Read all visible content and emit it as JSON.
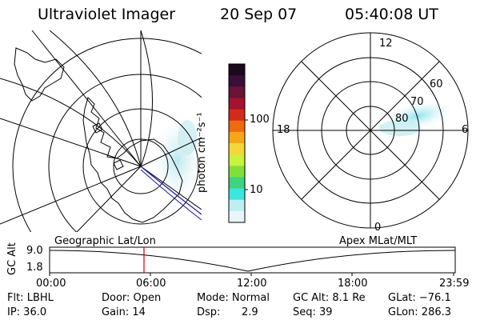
{
  "header": {
    "instrument": "Ultraviolet Imager",
    "date": "20 Sep 07",
    "time": "05:40:08 UT"
  },
  "colorbar": {
    "unit": "photon cm⁻²s⁻¹",
    "ticks": [
      "100",
      "10"
    ],
    "colors": [
      "#1a0a1a",
      "#3a0f3a",
      "#6a1438",
      "#a3122e",
      "#d42a1a",
      "#ef6a0f",
      "#f7a616",
      "#f4d83a",
      "#c9f23a",
      "#7fe03a",
      "#3fd27f",
      "#3ce6e0",
      "#bfeef2",
      "#e8f6f8"
    ]
  },
  "panels": {
    "geographic_label": "Geographic Lat/Lon",
    "apex_label": "Apex MLat/MLT",
    "mlt_labels": {
      "top": "12",
      "left": "18",
      "right": "6",
      "bottom": "0"
    },
    "mlat_labels": [
      "60",
      "70",
      "80"
    ]
  },
  "timeline": {
    "axis_label": "GC Alt",
    "y_ticks": [
      "9.0",
      "1.8"
    ],
    "x_ticks": [
      "00:00",
      "06:00",
      "12:00",
      "18:00",
      "23:59"
    ],
    "marker_time": "06:00",
    "marker_color": "#d00000"
  },
  "footer": {
    "row1": {
      "flt": "Flt: LBHL",
      "door": "Door: Open",
      "mode": "Mode: Normal",
      "gc_alt": "GC Alt: 8.1 Re",
      "glat": "GLat: −76.1"
    },
    "row2": {
      "ip": "IP: 36.0",
      "gain": "Gain: 14",
      "dsp_label": "Dsp:",
      "dsp_value": "2.9",
      "seq": "Seq: 39",
      "glon": "GLon: 286.3"
    }
  }
}
